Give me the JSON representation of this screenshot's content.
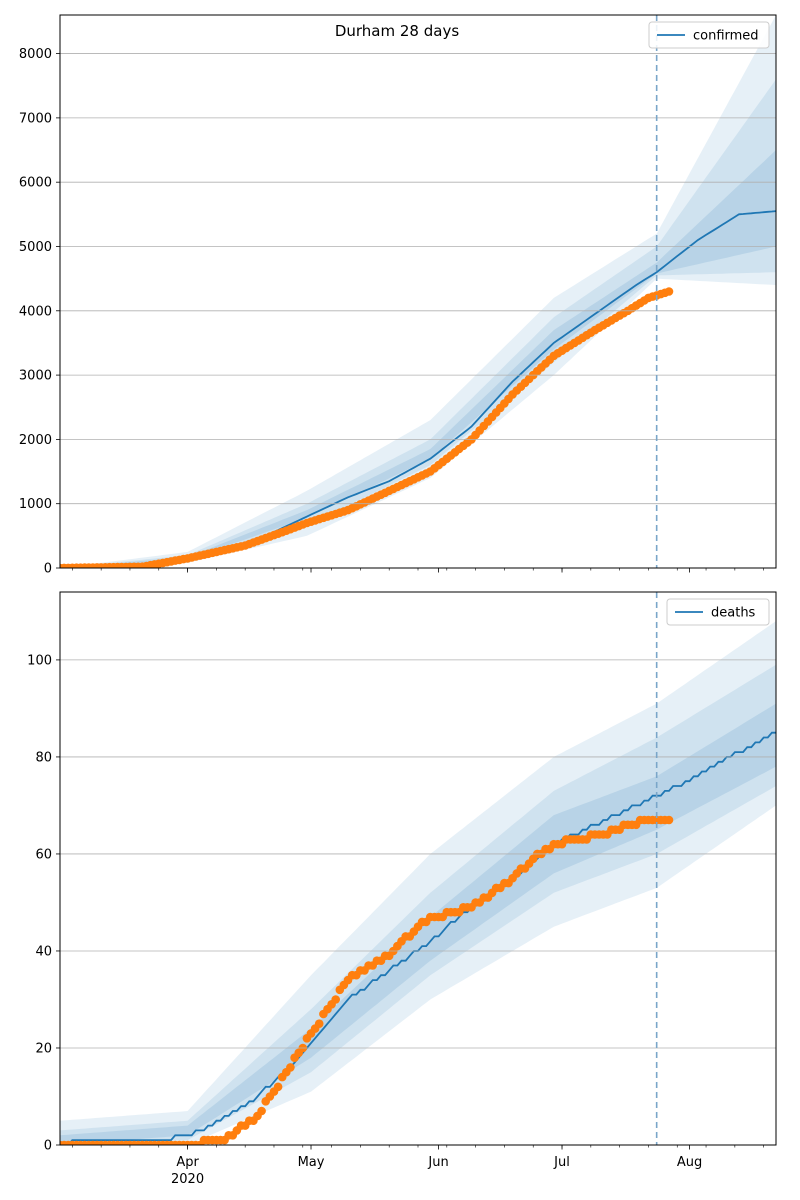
{
  "title": "Durham 28 days",
  "colors": {
    "line": "#1f77b4",
    "points": "#ff7f0e",
    "band": "#1f77b4",
    "grid": "#b0b0b0",
    "vline": "#7aa6c9"
  },
  "x_axis": {
    "range_days": [
      0,
      174
    ],
    "forecast_start_day": 145,
    "major_ticks": [
      {
        "day": 31,
        "label": "Apr",
        "sub": "2020"
      },
      {
        "day": 61,
        "label": "May",
        "sub": ""
      },
      {
        "day": 92,
        "label": "Jun",
        "sub": ""
      },
      {
        "day": 122,
        "label": "Jul",
        "sub": ""
      },
      {
        "day": 153,
        "label": "Aug",
        "sub": ""
      }
    ]
  },
  "chart_data": [
    {
      "type": "line",
      "panel": "confirmed",
      "series": [
        {
          "name": "confirmed",
          "kind": "model_median",
          "knots": [
            [
              0,
              0
            ],
            [
              20,
              10
            ],
            [
              31,
              150
            ],
            [
              45,
              350
            ],
            [
              55,
              650
            ],
            [
              70,
              1100
            ],
            [
              80,
              1350
            ],
            [
              90,
              1700
            ],
            [
              100,
              2200
            ],
            [
              110,
              2900
            ],
            [
              120,
              3500
            ],
            [
              130,
              3950
            ],
            [
              140,
              4400
            ],
            [
              145,
              4600
            ],
            [
              155,
              5100
            ],
            [
              165,
              5500
            ],
            [
              174,
              5550
            ]
          ]
        },
        {
          "name": "",
          "kind": "observed",
          "knots": [
            [
              0,
              0
            ],
            [
              20,
              20
            ],
            [
              31,
              150
            ],
            [
              45,
              350
            ],
            [
              55,
              580
            ],
            [
              60,
              700
            ],
            [
              70,
              900
            ],
            [
              80,
              1200
            ],
            [
              90,
              1500
            ],
            [
              100,
              2000
            ],
            [
              110,
              2700
            ],
            [
              120,
              3300
            ],
            [
              130,
              3700
            ],
            [
              138,
              4000
            ],
            [
              143,
              4200
            ],
            [
              148,
              4300
            ]
          ],
          "visible_days": [
            0,
            148
          ]
        }
      ],
      "bands": [
        {
          "level": "outer",
          "lower": [
            [
              0,
              0
            ],
            [
              31,
              80
            ],
            [
              60,
              500
            ],
            [
              90,
              1400
            ],
            [
              120,
              3000
            ],
            [
              145,
              4500
            ],
            [
              174,
              4400
            ]
          ],
          "upper": [
            [
              0,
              0
            ],
            [
              31,
              250
            ],
            [
              60,
              1200
            ],
            [
              90,
              2300
            ],
            [
              120,
              4200
            ],
            [
              145,
              5200
            ],
            [
              174,
              8600
            ]
          ]
        },
        {
          "level": "middle",
          "lower": [
            [
              0,
              0
            ],
            [
              31,
              110
            ],
            [
              60,
              650
            ],
            [
              90,
              1600
            ],
            [
              120,
              3200
            ],
            [
              145,
              4550
            ],
            [
              174,
              4600
            ]
          ],
          "upper": [
            [
              0,
              0
            ],
            [
              31,
              200
            ],
            [
              60,
              1000
            ],
            [
              90,
              2000
            ],
            [
              120,
              3900
            ],
            [
              145,
              5000
            ],
            [
              174,
              7600
            ]
          ]
        },
        {
          "level": "inner",
          "lower": [
            [
              0,
              0
            ],
            [
              31,
              130
            ],
            [
              60,
              780
            ],
            [
              90,
              1700
            ],
            [
              120,
              3400
            ],
            [
              145,
              4580
            ],
            [
              174,
              5000
            ]
          ],
          "upper": [
            [
              0,
              0
            ],
            [
              31,
              170
            ],
            [
              60,
              900
            ],
            [
              90,
              1850
            ],
            [
              120,
              3700
            ],
            [
              145,
              4750
            ],
            [
              174,
              6500
            ]
          ]
        }
      ],
      "ylim": [
        0,
        8600
      ],
      "yticks": [
        0,
        1000,
        2000,
        3000,
        4000,
        5000,
        6000,
        7000,
        8000
      ],
      "ytick_labels": [
        "0",
        "1000",
        "2000",
        "3000",
        "4000",
        "5000",
        "6000",
        "7000",
        "8000"
      ],
      "grid": "y",
      "legend": "top-right"
    },
    {
      "type": "line",
      "panel": "deaths",
      "series": [
        {
          "name": "deaths",
          "kind": "model_median",
          "knots": [
            [
              0,
              0
            ],
            [
              5,
              1
            ],
            [
              25,
              1
            ],
            [
              35,
              3
            ],
            [
              45,
              8
            ],
            [
              55,
              15
            ],
            [
              61,
              21
            ],
            [
              70,
              30
            ],
            [
              80,
              36
            ],
            [
              90,
              42
            ],
            [
              100,
              49
            ],
            [
              110,
              55
            ],
            [
              120,
              62
            ],
            [
              130,
              66
            ],
            [
              140,
              70
            ],
            [
              145,
              72
            ],
            [
              155,
              76
            ],
            [
              165,
              81
            ],
            [
              174,
              85
            ]
          ]
        },
        {
          "name": "",
          "kind": "observed",
          "knots": [
            [
              0,
              0
            ],
            [
              30,
              0
            ],
            [
              40,
              1
            ],
            [
              48,
              6
            ],
            [
              55,
              15
            ],
            [
              61,
              23
            ],
            [
              70,
              34
            ],
            [
              80,
              39
            ],
            [
              88,
              46
            ],
            [
              95,
              48
            ],
            [
              100,
              49
            ],
            [
              110,
              55
            ],
            [
              115,
              59
            ],
            [
              120,
              62
            ],
            [
              125,
              63
            ],
            [
              132,
              64
            ],
            [
              138,
              66
            ],
            [
              143,
              67
            ],
            [
              148,
              67
            ]
          ],
          "visible_days": [
            0,
            148
          ]
        }
      ],
      "bands": [
        {
          "level": "outer",
          "lower": [
            [
              0,
              0
            ],
            [
              31,
              0
            ],
            [
              61,
              11
            ],
            [
              90,
              30
            ],
            [
              120,
              45
            ],
            [
              145,
              53
            ],
            [
              174,
              70
            ]
          ],
          "upper": [
            [
              0,
              5
            ],
            [
              31,
              7
            ],
            [
              61,
              35
            ],
            [
              90,
              60
            ],
            [
              120,
              80
            ],
            [
              145,
              91
            ],
            [
              174,
              108
            ]
          ]
        },
        {
          "level": "middle",
          "lower": [
            [
              0,
              0
            ],
            [
              31,
              1
            ],
            [
              61,
              15
            ],
            [
              90,
              35
            ],
            [
              120,
              52
            ],
            [
              145,
              60
            ],
            [
              174,
              74
            ]
          ],
          "upper": [
            [
              0,
              3
            ],
            [
              31,
              5
            ],
            [
              61,
              28
            ],
            [
              90,
              52
            ],
            [
              120,
              73
            ],
            [
              145,
              84
            ],
            [
              174,
              99
            ]
          ]
        },
        {
          "level": "inner",
          "lower": [
            [
              0,
              0
            ],
            [
              31,
              2
            ],
            [
              61,
              18
            ],
            [
              90,
              38
            ],
            [
              120,
              56
            ],
            [
              145,
              65
            ],
            [
              174,
              78
            ]
          ],
          "upper": [
            [
              0,
              2
            ],
            [
              31,
              4
            ],
            [
              61,
              24
            ],
            [
              90,
              47
            ],
            [
              120,
              68
            ],
            [
              145,
              76
            ],
            [
              174,
              91
            ]
          ]
        }
      ],
      "ylim": [
        0,
        114
      ],
      "yticks": [
        0,
        20,
        40,
        60,
        80,
        100
      ],
      "ytick_labels": [
        "0",
        "20",
        "40",
        "60",
        "80",
        "100"
      ],
      "grid": "y",
      "legend": "top-right"
    }
  ]
}
